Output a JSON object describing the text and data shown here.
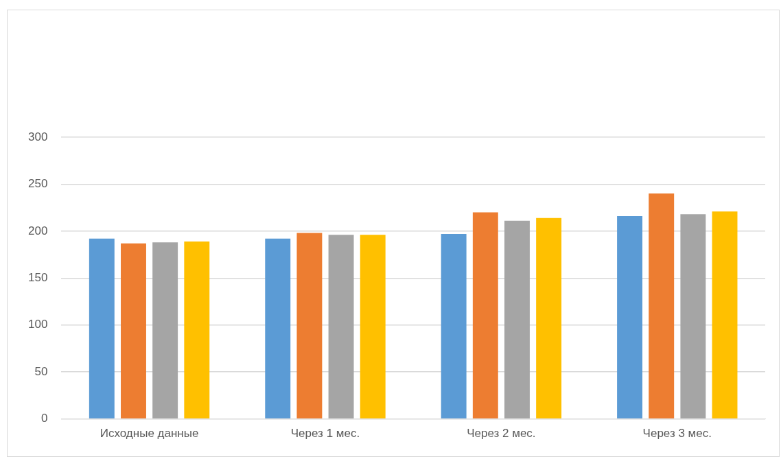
{
  "chart_data": {
    "type": "bar",
    "categories": [
      "Исходные данные",
      "Через 1 мес.",
      "Через 2 мес.",
      "Через 3 мес."
    ],
    "series": [
      {
        "color": "#5b9bd5",
        "values": [
          192,
          192,
          197,
          216
        ]
      },
      {
        "color": "#ed7d31",
        "values": [
          187,
          198,
          220,
          240
        ]
      },
      {
        "color": "#a5a5a5",
        "values": [
          188,
          196,
          211,
          218
        ]
      },
      {
        "color": "#ffc000",
        "values": [
          189,
          196,
          214,
          221
        ]
      }
    ],
    "ylim": [
      0,
      300
    ],
    "yticks": [
      0,
      50,
      100,
      150,
      200,
      250,
      300
    ],
    "grid": "y",
    "legend": false
  }
}
